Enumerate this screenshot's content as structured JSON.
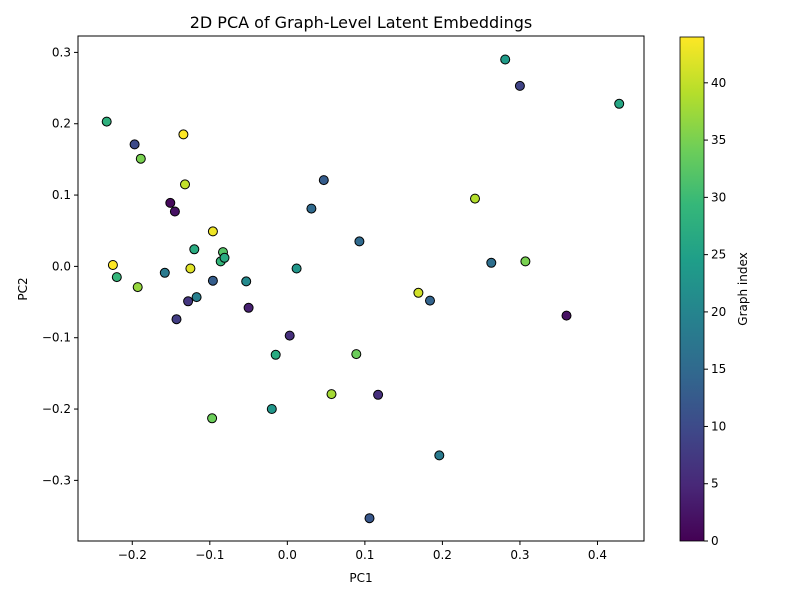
{
  "chart_data": {
    "type": "scatter",
    "title": "2D PCA of Graph-Level Latent Embeddings",
    "xlabel": "PC1",
    "ylabel": "PC2",
    "xlim": [
      -0.27,
      0.46
    ],
    "ylim": [
      -0.385,
      0.323
    ],
    "xticks": [
      -0.2,
      -0.1,
      0.0,
      0.1,
      0.2,
      0.3,
      0.4
    ],
    "xtick_labels": [
      "−0.2",
      "−0.1",
      "0.0",
      "0.1",
      "0.2",
      "0.3",
      "0.4"
    ],
    "yticks": [
      -0.3,
      -0.2,
      -0.1,
      0.0,
      0.1,
      0.2,
      0.3
    ],
    "ytick_labels": [
      "−0.3",
      "−0.2",
      "−0.1",
      "0.0",
      "0.1",
      "0.2",
      "0.3"
    ],
    "colorbar": {
      "label": "Graph index",
      "colormap": "viridis",
      "range": [
        0,
        44
      ],
      "ticks": [
        0,
        5,
        10,
        15,
        20,
        25,
        30,
        35,
        40
      ],
      "tick_labels": [
        "0",
        "5",
        "10",
        "15",
        "20",
        "25",
        "30",
        "35",
        "40"
      ]
    },
    "grid": false,
    "points": [
      {
        "x": -0.233,
        "y": 0.203,
        "c": 28
      },
      {
        "x": -0.197,
        "y": 0.171,
        "c": 10
      },
      {
        "x": -0.189,
        "y": 0.151,
        "c": 35
      },
      {
        "x": -0.134,
        "y": 0.185,
        "c": 44
      },
      {
        "x": -0.151,
        "y": 0.089,
        "c": 1
      },
      {
        "x": -0.145,
        "y": 0.077,
        "c": 2
      },
      {
        "x": -0.132,
        "y": 0.115,
        "c": 40
      },
      {
        "x": -0.096,
        "y": 0.049,
        "c": 43
      },
      {
        "x": -0.225,
        "y": 0.002,
        "c": 44
      },
      {
        "x": -0.22,
        "y": -0.015,
        "c": 29
      },
      {
        "x": -0.193,
        "y": -0.029,
        "c": 37
      },
      {
        "x": -0.158,
        "y": -0.009,
        "c": 18
      },
      {
        "x": -0.143,
        "y": -0.074,
        "c": 8
      },
      {
        "x": -0.128,
        "y": -0.049,
        "c": 7
      },
      {
        "x": -0.125,
        "y": -0.003,
        "c": 42
      },
      {
        "x": -0.12,
        "y": 0.024,
        "c": 27
      },
      {
        "x": -0.117,
        "y": -0.043,
        "c": 19
      },
      {
        "x": -0.096,
        "y": -0.02,
        "c": 13
      },
      {
        "x": -0.086,
        "y": 0.007,
        "c": 29
      },
      {
        "x": -0.083,
        "y": 0.02,
        "c": 32
      },
      {
        "x": -0.081,
        "y": 0.012,
        "c": 27
      },
      {
        "x": -0.053,
        "y": -0.021,
        "c": 21
      },
      {
        "x": -0.05,
        "y": -0.058,
        "c": 4
      },
      {
        "x": -0.097,
        "y": -0.213,
        "c": 34
      },
      {
        "x": -0.02,
        "y": -0.2,
        "c": 23
      },
      {
        "x": -0.015,
        "y": -0.124,
        "c": 27
      },
      {
        "x": 0.003,
        "y": -0.097,
        "c": 6
      },
      {
        "x": 0.012,
        "y": -0.003,
        "c": 23
      },
      {
        "x": 0.031,
        "y": 0.081,
        "c": 15
      },
      {
        "x": 0.047,
        "y": 0.121,
        "c": 13
      },
      {
        "x": 0.057,
        "y": -0.179,
        "c": 38
      },
      {
        "x": 0.089,
        "y": -0.123,
        "c": 34
      },
      {
        "x": 0.093,
        "y": 0.035,
        "c": 15
      },
      {
        "x": 0.117,
        "y": -0.18,
        "c": 6
      },
      {
        "x": 0.106,
        "y": -0.353,
        "c": 12
      },
      {
        "x": 0.169,
        "y": -0.037,
        "c": 41
      },
      {
        "x": 0.184,
        "y": -0.048,
        "c": 14
      },
      {
        "x": 0.196,
        "y": -0.265,
        "c": 18
      },
      {
        "x": 0.242,
        "y": 0.095,
        "c": 39
      },
      {
        "x": 0.263,
        "y": 0.005,
        "c": 16
      },
      {
        "x": 0.281,
        "y": 0.29,
        "c": 24
      },
      {
        "x": 0.3,
        "y": 0.253,
        "c": 9
      },
      {
        "x": 0.307,
        "y": 0.007,
        "c": 35
      },
      {
        "x": 0.36,
        "y": -0.069,
        "c": 2
      },
      {
        "x": 0.428,
        "y": 0.228,
        "c": 26
      }
    ]
  }
}
